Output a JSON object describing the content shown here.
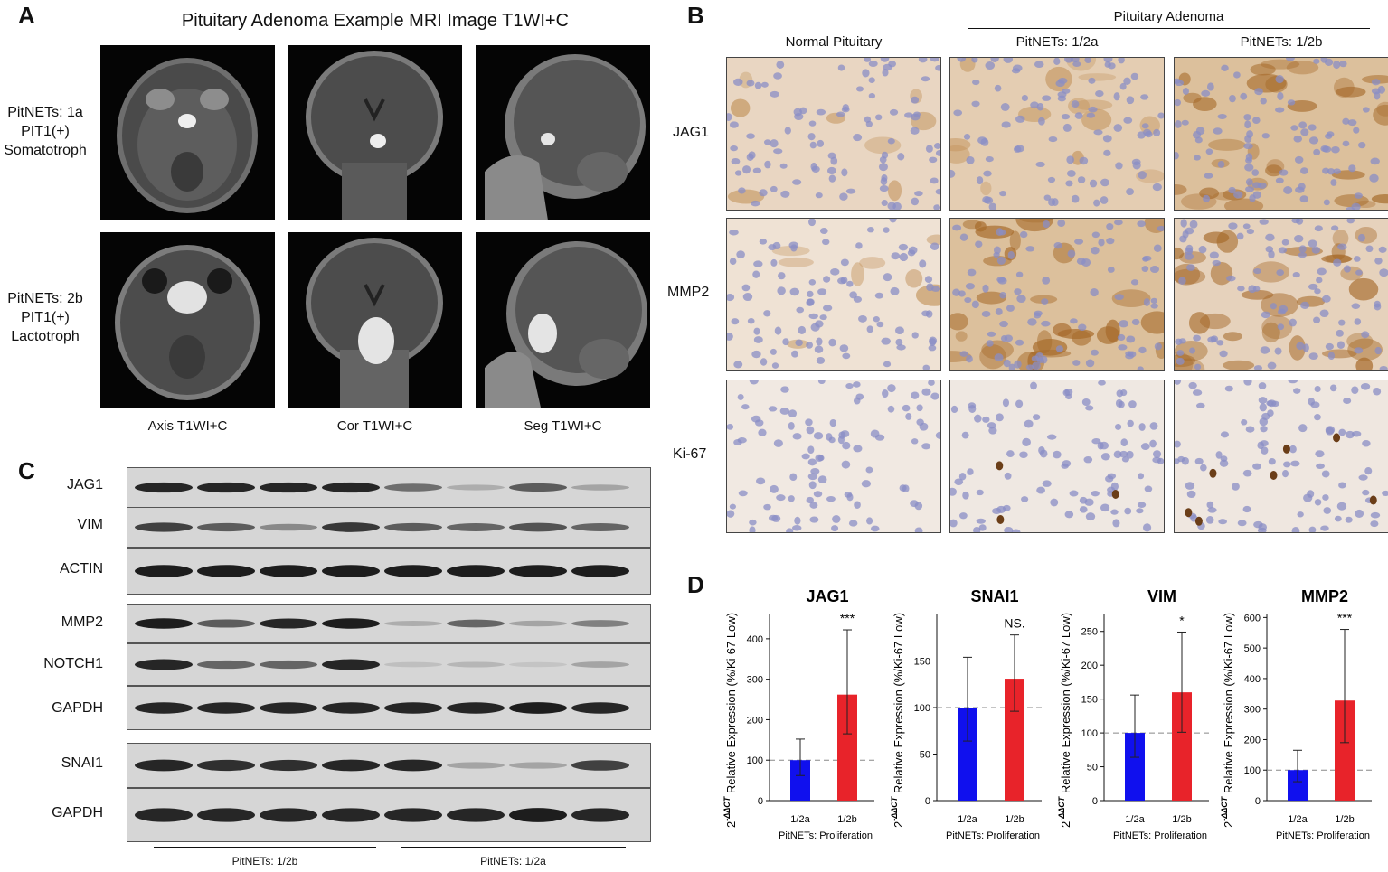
{
  "panels": {
    "a": "A",
    "b": "B",
    "c": "C",
    "d": "D"
  },
  "panelA": {
    "title": "Pituitary Adenoma Example MRI Image T1WI+C",
    "rows": [
      {
        "line1": "PitNETs: 1a",
        "line2": "PIT1(+)",
        "line3": "Somatotroph"
      },
      {
        "line1": "PitNETs: 2b",
        "line2": "PIT1(+)",
        "line3": "Lactotroph"
      }
    ],
    "cols": [
      "Axis T1WI+C",
      "Cor T1WI+C",
      "Seg T1WI+C"
    ]
  },
  "panelB": {
    "group_title": "Pituitary Adenoma",
    "cols": [
      "Normal Pituitary",
      "PitNETs: 1/2a",
      "PitNETs: 1/2b"
    ],
    "rows": [
      "JAG1",
      "MMP2",
      "Ki-67"
    ]
  },
  "panelC": {
    "labels": [
      "JAG1",
      "VIM",
      "ACTIN",
      "MMP2",
      "NOTCH1",
      "GAPDH",
      "SNAI1",
      "GAPDH"
    ],
    "groups": [
      "PitNETs: 1/2b",
      "PitNETs: 1/2a"
    ]
  },
  "panelD": {
    "ylabel_prefix": "2",
    "ylabel_sup": "-ΔΔCT",
    "ylabel_main": " Relative Expression (%/Ki-67 Low)",
    "xlabel": "PitNETs: Proliferation",
    "colors": {
      "a": "#1010ee",
      "b": "#e8232a"
    }
  },
  "chart_data": [
    {
      "type": "bar",
      "title": "JAG1",
      "categories": [
        "1/2a",
        "1/2b"
      ],
      "values": [
        100,
        262
      ],
      "err_low": [
        62,
        165
      ],
      "err_high": [
        152,
        422
      ],
      "ylim": [
        0,
        460
      ],
      "yticks": [
        0,
        100,
        200,
        300,
        400
      ],
      "significance": "***",
      "ref_line": 100
    },
    {
      "type": "bar",
      "title": "SNAI1",
      "categories": [
        "1/2a",
        "1/2b"
      ],
      "values": [
        100,
        131
      ],
      "err_low": [
        64,
        96
      ],
      "err_high": [
        154,
        178
      ],
      "ylim": [
        0,
        200
      ],
      "yticks": [
        0,
        50,
        100,
        150
      ],
      "significance": "NS.",
      "ref_line": 100
    },
    {
      "type": "bar",
      "title": "VIM",
      "categories": [
        "1/2a",
        "1/2b"
      ],
      "values": [
        100,
        160
      ],
      "err_low": [
        64,
        101
      ],
      "err_high": [
        156,
        249
      ],
      "ylim": [
        0,
        275
      ],
      "yticks": [
        0,
        50,
        100,
        150,
        200,
        250
      ],
      "significance": "*",
      "ref_line": 100
    },
    {
      "type": "bar",
      "title": "MMP2",
      "categories": [
        "1/2a",
        "1/2b"
      ],
      "values": [
        100,
        328
      ],
      "err_low": [
        62,
        190
      ],
      "err_high": [
        165,
        561
      ],
      "ylim": [
        0,
        610
      ],
      "yticks": [
        0,
        100,
        200,
        300,
        400,
        500,
        600
      ],
      "significance": "***",
      "ref_line": 100
    }
  ]
}
